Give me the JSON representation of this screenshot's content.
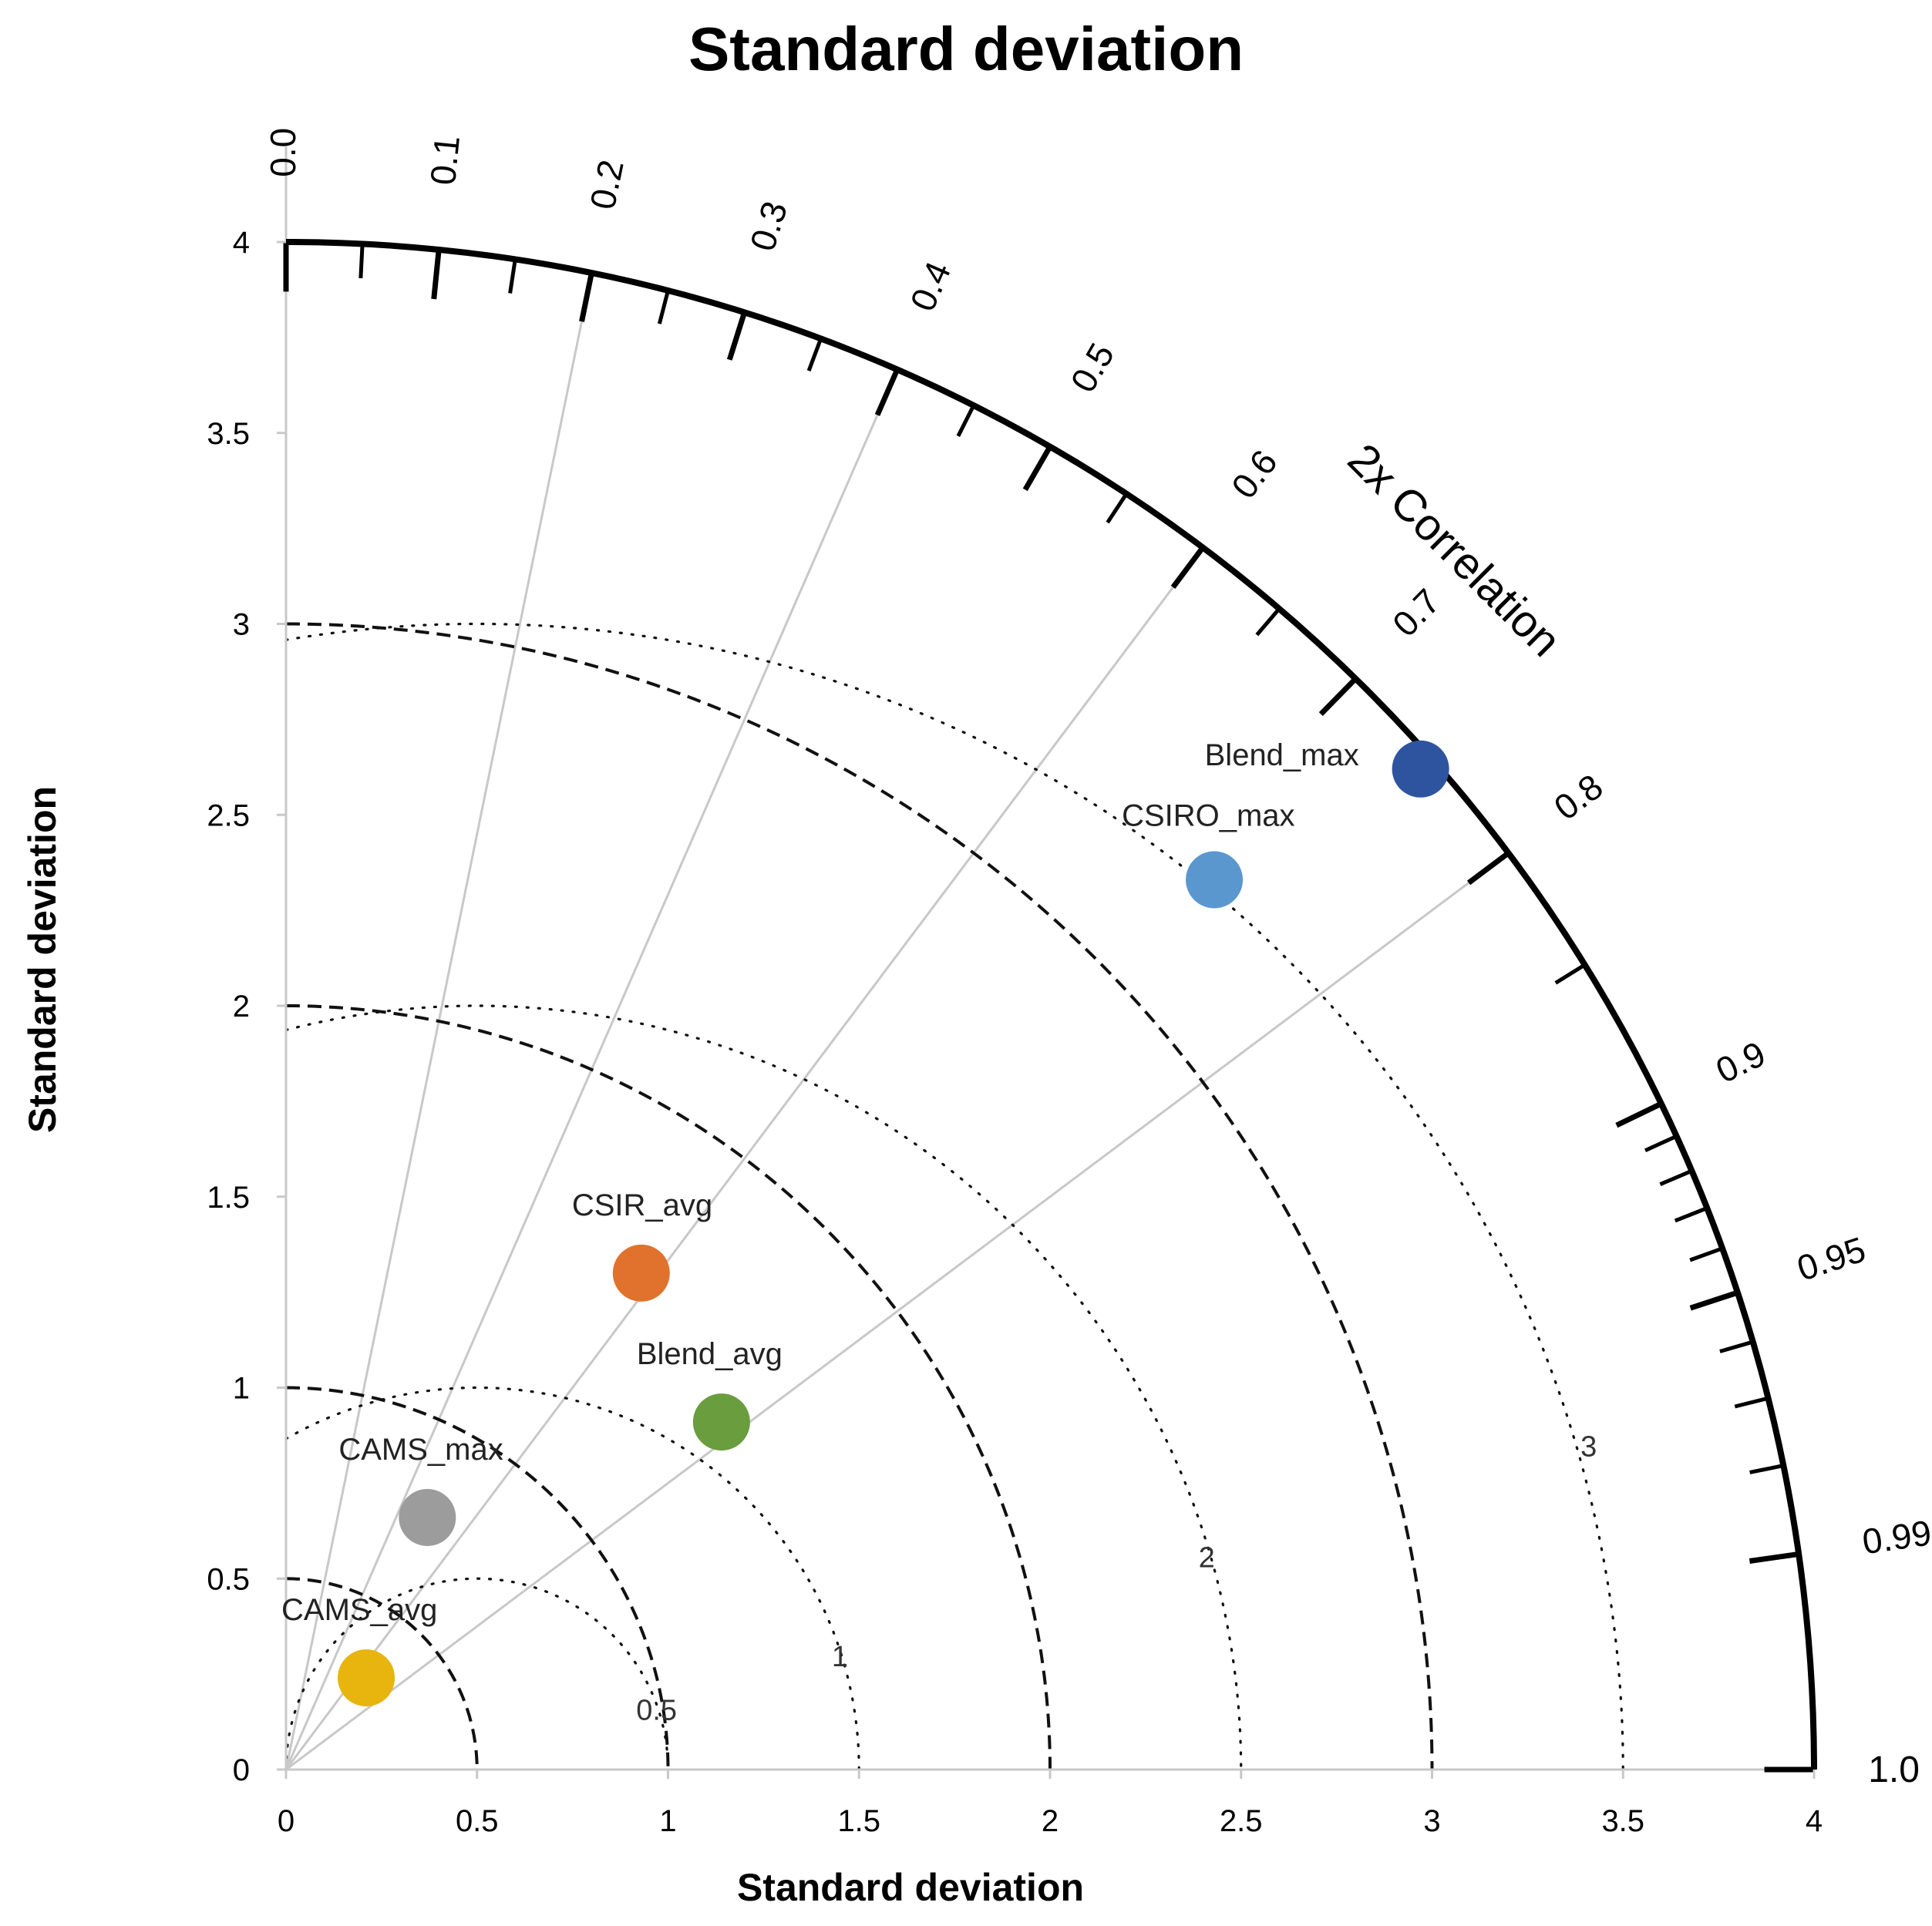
{
  "chart_data": {
    "type": "taylor-diagram",
    "title": "Standard deviation",
    "xlabel": "Standard deviation",
    "ylabel": "Standard deviation",
    "arc_label": "2x Correlation",
    "xlim": [
      0,
      4
    ],
    "ylim": [
      0,
      4
    ],
    "x_ticks": [
      "0",
      "0.5",
      "1",
      "1.5",
      "2",
      "2.5",
      "3",
      "3.5",
      "4"
    ],
    "y_ticks": [
      "0",
      "0.5",
      "1",
      "1.5",
      "2",
      "2.5",
      "3",
      "3.5",
      "4"
    ],
    "correlation_ticks": [
      "0.0",
      "0.1",
      "0.2",
      "0.3",
      "0.4",
      "0.5",
      "0.6",
      "0.7",
      "0.8",
      "0.9",
      "0.95",
      "0.99",
      "1.0"
    ],
    "correlation_radial_lines": [
      0.2,
      0.4,
      0.6,
      0.8
    ],
    "std_dev_arcs_dashed": [
      0.5,
      1,
      2,
      3
    ],
    "rmsd_arcs_dotted": [
      0.5,
      1,
      2,
      3
    ],
    "rmsd_labels": [
      "0.5",
      "1",
      "2",
      "3"
    ],
    "series": [
      {
        "name": "Blend_max",
        "x": 2.97,
        "y": 2.62,
        "color": "#2e54a0"
      },
      {
        "name": "CSIRO_max",
        "x": 2.43,
        "y": 2.33,
        "color": "#5b97cf"
      },
      {
        "name": "CSIR_avg",
        "x": 0.93,
        "y": 1.3,
        "color": "#e0722e"
      },
      {
        "name": "Blend_avg",
        "x": 1.14,
        "y": 0.91,
        "color": "#6a9d3e"
      },
      {
        "name": "CAMS_max",
        "x": 0.37,
        "y": 0.66,
        "color": "#9c9c9c"
      },
      {
        "name": "CAMS_avg",
        "x": 0.21,
        "y": 0.24,
        "color": "#e8b40e"
      }
    ]
  }
}
